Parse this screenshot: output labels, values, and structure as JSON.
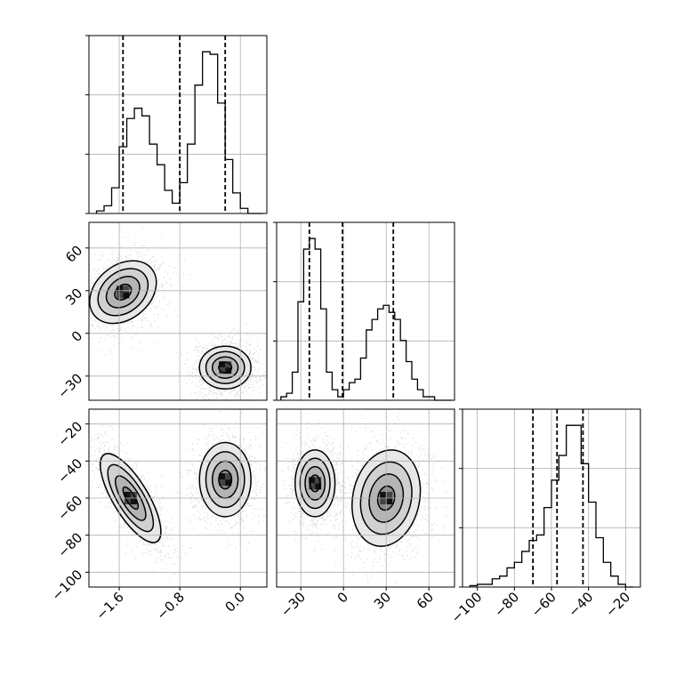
{
  "chart_data": {
    "type": "corner",
    "parameters": [
      {
        "id": "p0",
        "range": [
          -2.0,
          0.35
        ],
        "ticks": [
          -1.6,
          -0.8,
          0.0
        ],
        "tick_labels": [
          "−1.6",
          "−0.8",
          "0.0"
        ]
      },
      {
        "id": "p1",
        "range": [
          -47,
          78
        ],
        "ticks": [
          -30,
          0,
          30,
          60
        ],
        "tick_labels": [
          "−30",
          "0",
          "30",
          "60"
        ]
      },
      {
        "id": "p2",
        "range": [
          -108,
          -12
        ],
        "ticks": [
          -100,
          -80,
          -60,
          -40,
          -20
        ],
        "tick_labels": [
          "−100",
          "−80",
          "−60",
          "−40",
          "−20"
        ]
      }
    ],
    "grid": true,
    "histograms": [
      {
        "param": 0,
        "bin_edges": [
          -1.9,
          -1.8,
          -1.7,
          -1.6,
          -1.5,
          -1.4,
          -1.3,
          -1.2,
          -1.1,
          -1.0,
          -0.9,
          -0.8,
          -0.7,
          -0.6,
          -0.5,
          -0.4,
          -0.3,
          -0.2,
          -0.1,
          0.0,
          0.1,
          0.2,
          0.3
        ],
        "counts": [
          1,
          3,
          10,
          26,
          37,
          41,
          38,
          27,
          19,
          9,
          4,
          12,
          27,
          50,
          63,
          62,
          43,
          21,
          8,
          2,
          0,
          0
        ],
        "quantiles": [
          -1.55,
          -0.8,
          -0.2
        ]
      },
      {
        "param": 1,
        "bin_edges": [
          -44,
          -40,
          -36,
          -32,
          -28,
          -24,
          -20,
          -16,
          -12,
          -8,
          -4,
          0,
          4,
          8,
          12,
          16,
          20,
          24,
          28,
          32,
          36,
          40,
          44,
          48,
          52,
          56,
          60,
          64,
          68,
          72,
          76
        ],
        "counts": [
          1,
          2,
          8,
          28,
          43,
          46,
          43,
          26,
          8,
          3,
          1,
          3,
          5,
          6,
          12,
          20,
          23,
          26,
          27,
          25,
          23,
          17,
          11,
          6,
          3,
          1,
          1,
          0,
          0,
          0
        ],
        "quantiles": [
          -24,
          -0.7,
          35
        ]
      },
      {
        "param": 2,
        "bin_edges": [
          -104,
          -100,
          -96,
          -92,
          -88,
          -84,
          -80,
          -76,
          -72,
          -68,
          -64,
          -60,
          -56,
          -52,
          -48,
          -44,
          -40,
          -36,
          -32,
          -28,
          -24,
          -20,
          -16
        ],
        "counts": [
          0.5,
          1,
          1,
          3,
          4,
          7,
          9,
          13,
          17,
          19,
          29,
          39,
          48,
          59,
          59,
          45,
          31,
          18,
          9,
          4,
          1,
          0
        ],
        "quantiles": [
          -70,
          -57,
          -43
        ]
      }
    ],
    "pairs": [
      {
        "x_param": 0,
        "y_param": 1,
        "clusters": [
          {
            "center": [
              -1.55,
              29
            ],
            "sd": [
              0.22,
              11
            ],
            "rho": 0.3,
            "weight": 0.5
          },
          {
            "center": [
              -0.2,
              -24
            ],
            "sd": [
              0.17,
              7.5
            ],
            "rho": 0.0,
            "weight": 0.5
          }
        ]
      },
      {
        "x_param": 0,
        "y_param": 2,
        "clusters": [
          {
            "center": [
              -1.45,
              -60
            ],
            "sd": [
              0.2,
              12
            ],
            "rho": -0.75,
            "weight": 0.5
          },
          {
            "center": [
              -0.2,
              -50
            ],
            "sd": [
              0.17,
              10
            ],
            "rho": 0.0,
            "weight": 0.5
          }
        ]
      },
      {
        "x_param": 1,
        "y_param": 2,
        "clusters": [
          {
            "center": [
              -20,
              -52
            ],
            "sd": [
              7,
              9
            ],
            "rho": 0.0,
            "weight": 0.5
          },
          {
            "center": [
              30,
              -60
            ],
            "sd": [
              12,
              13
            ],
            "rho": 0.15,
            "weight": 0.5
          }
        ]
      }
    ],
    "contour_levels_sigma": [
      0.5,
      1.0,
      1.5,
      2.0
    ]
  }
}
